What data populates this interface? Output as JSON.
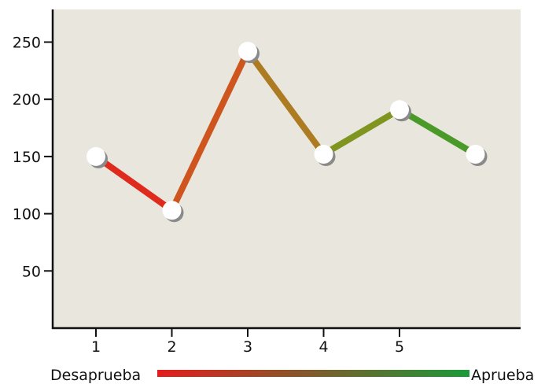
{
  "chart_data": {
    "type": "line",
    "x": [
      1,
      2,
      3,
      4,
      5,
      6
    ],
    "y": [
      150,
      103,
      242,
      152,
      191,
      152
    ],
    "xticks": [
      "1",
      "2",
      "3",
      "4",
      "5"
    ],
    "yticks": [
      "50",
      "100",
      "150",
      "200",
      "250"
    ],
    "xlim": [
      0.5,
      6.5
    ],
    "ylim": [
      0,
      280
    ],
    "grid": false,
    "colors": {
      "plot_background": "#e8e6dd",
      "axis": "#111111",
      "marker": "#ffffff",
      "marker_shadow": "#8a8a8a",
      "gradient_start": "#e31d1d",
      "gradient_end": "#1a9a3a"
    },
    "segment_colors": [
      "#df2a1e",
      "#cf551e",
      "#ad7c22",
      "#7f951f",
      "#4a9a2a"
    ],
    "legend": {
      "left_label": "Desaprueba",
      "right_label": "Aprueba",
      "placement": "bottom"
    }
  }
}
